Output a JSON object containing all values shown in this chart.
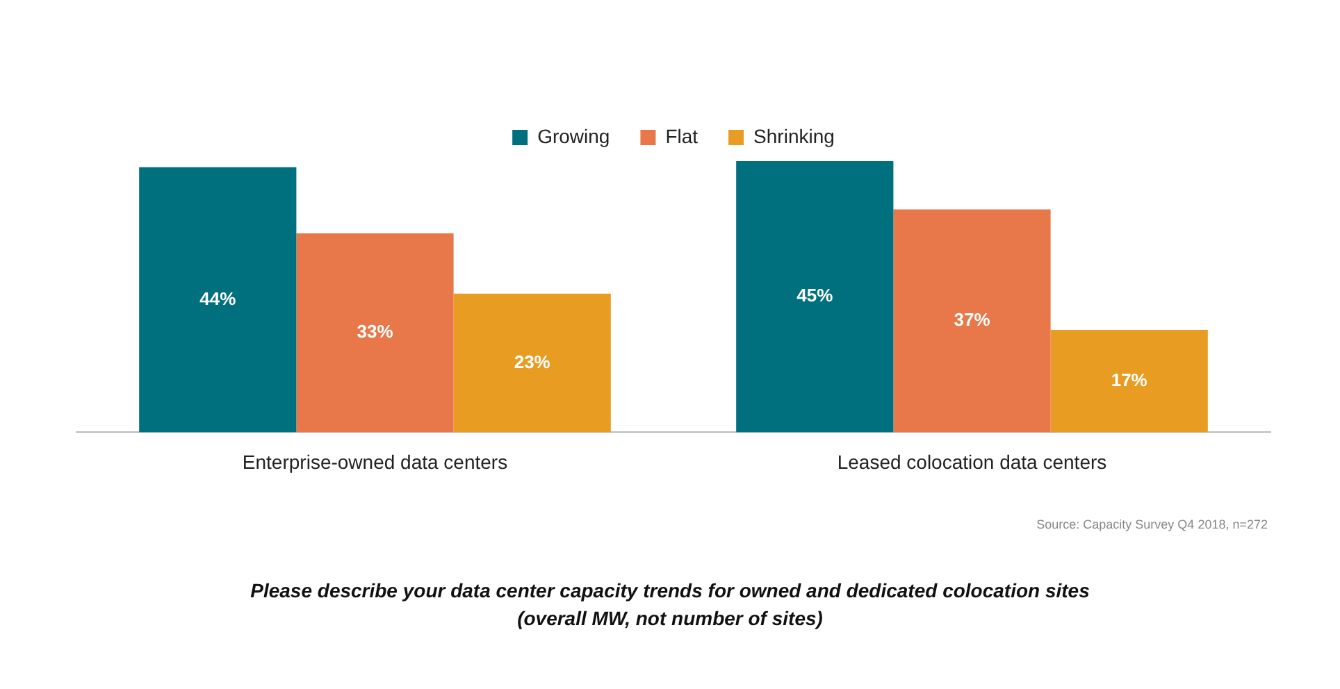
{
  "chart_data": {
    "type": "bar",
    "title": "Please describe your data center capacity trends for owned and dedicated colocation sites",
    "subtitle": "(overall MW, not number of sites)",
    "annotations": [
      "Source: Capacity Survey Q4 2018, n=272"
    ],
    "categories": [
      "Enterprise-owned data centers",
      "Leased colocation data centers"
    ],
    "series": [
      {
        "name": "Growing",
        "color": "#00707f",
        "values": [
          44,
          45
        ],
        "value_labels": [
          "44%",
          "45%"
        ]
      },
      {
        "name": "Flat",
        "color": "#e8774a",
        "values": [
          33,
          37
        ],
        "value_labels": [
          "33%",
          "37%"
        ]
      },
      {
        "name": "Shrinking",
        "color": "#e89c22",
        "values": [
          23,
          17
        ],
        "value_labels": [
          "23%",
          "17%"
        ]
      }
    ],
    "legend": "top",
    "grid": false
  }
}
